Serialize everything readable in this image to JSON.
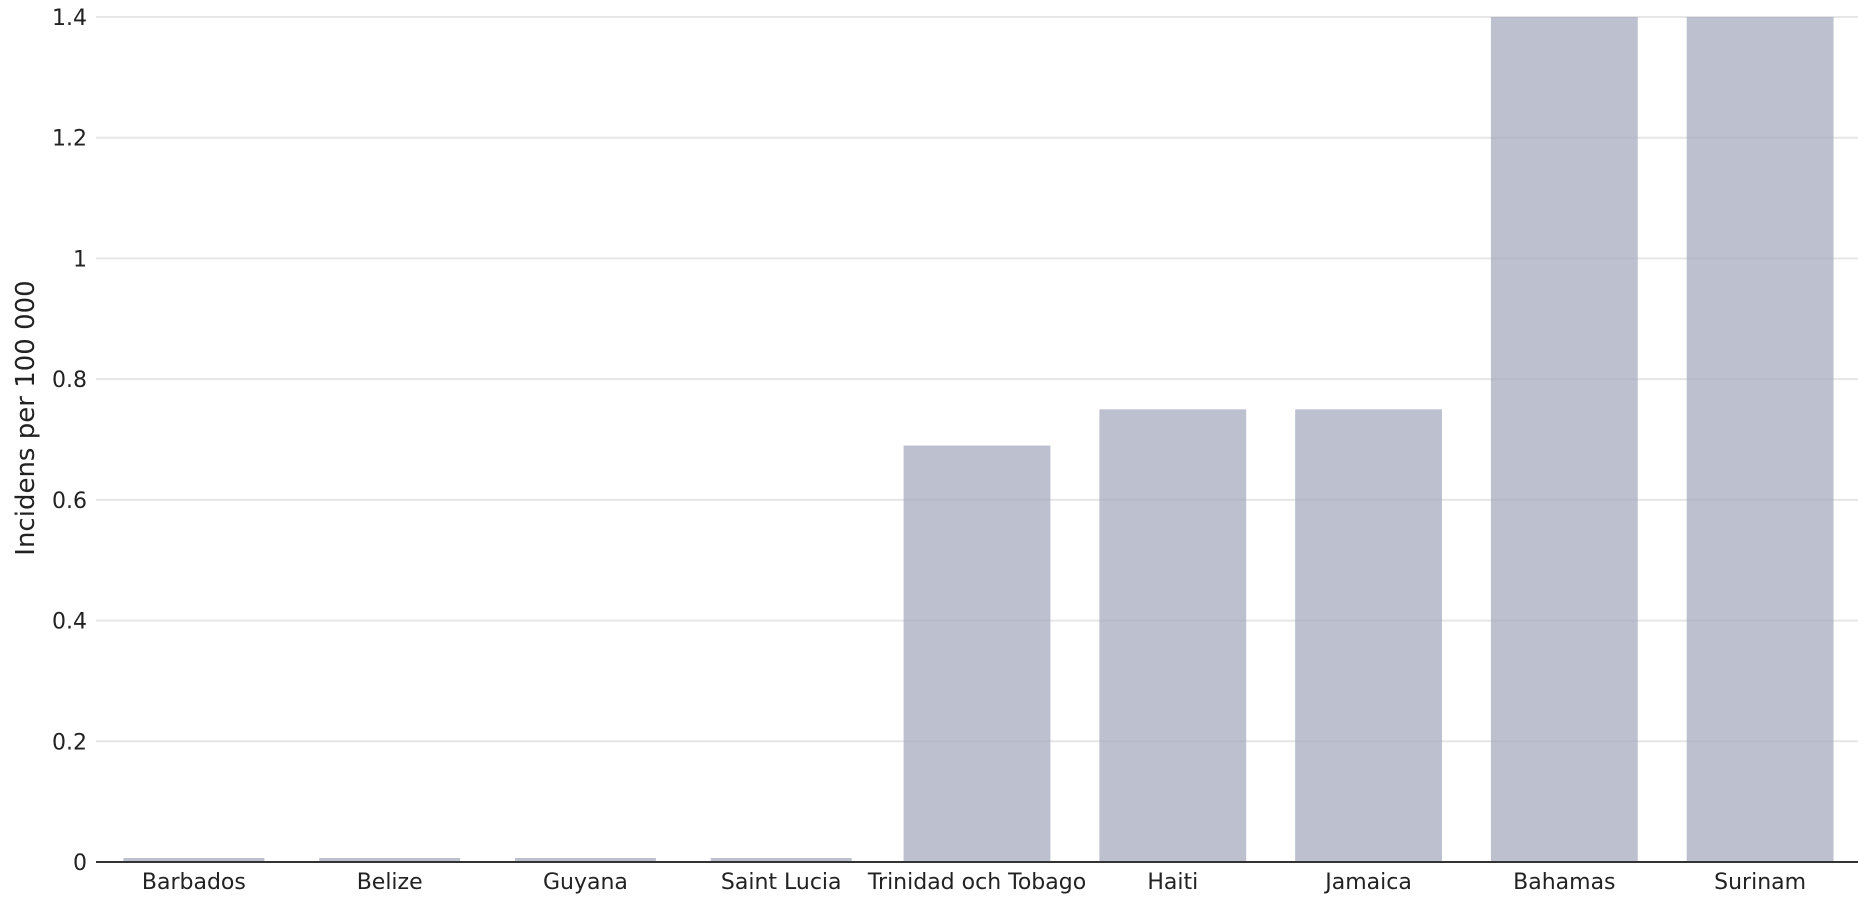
{
  "chart_data": {
    "type": "bar",
    "categories": [
      "Barbados",
      "Belize",
      "Guyana",
      "Saint Lucia",
      "Trinidad och Tobago",
      "Haiti",
      "Jamaica",
      "Bahamas",
      "Surinam"
    ],
    "values": [
      0,
      0,
      0,
      0,
      0.69,
      0.75,
      0.75,
      1.4,
      1.4
    ],
    "title": "",
    "xlabel": "",
    "ylabel": "Incidens per 100 000",
    "ylim": [
      0,
      1.4
    ],
    "yticks": [
      0,
      0.2,
      0.4,
      0.6,
      0.8,
      1,
      1.2,
      1.4
    ],
    "ytick_labels": [
      "0",
      "0.2",
      "0.4",
      "0.6",
      "0.8",
      "1",
      "1.2",
      "1.4"
    ],
    "grid": true,
    "legend": "none",
    "bar_color": "#a4a9bc"
  }
}
